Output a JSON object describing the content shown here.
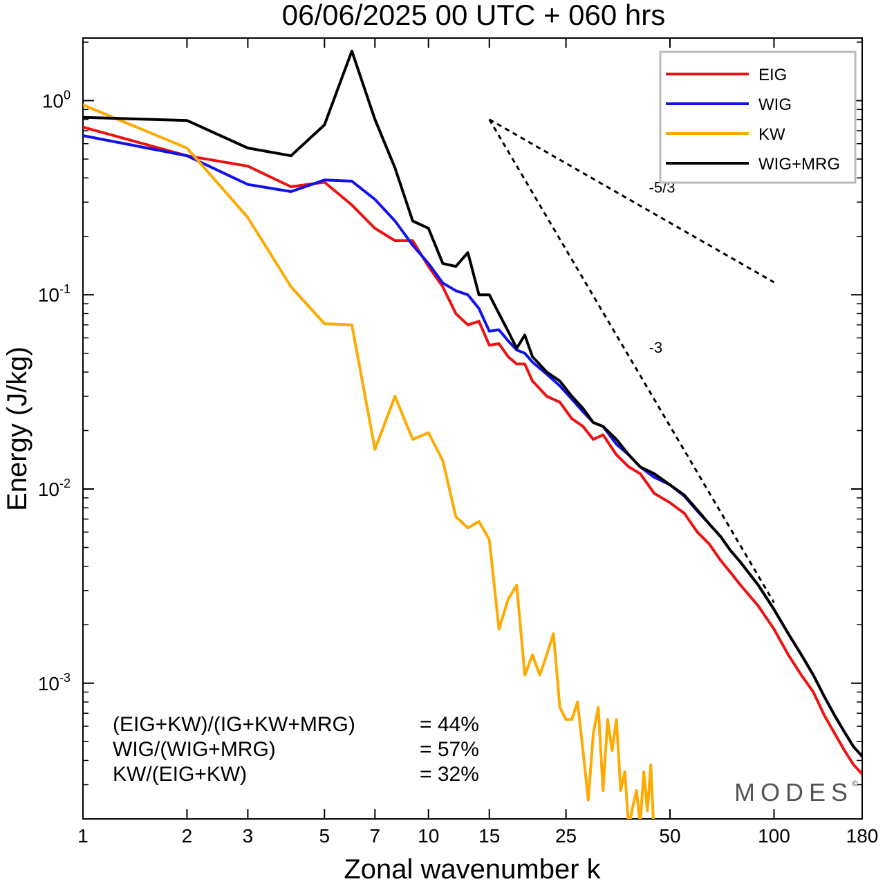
{
  "chart_data": {
    "type": "line",
    "title": "06/06/2025  00 UTC  + 060 hrs",
    "xlabel": "Zonal wavenumber k",
    "ylabel": "Energy (J/kg)",
    "x_scale": "log",
    "y_scale": "log",
    "xlim": [
      1,
      180
    ],
    "ylim": [
      0.0002,
      2.1
    ],
    "x_ticks": [
      1,
      2,
      3,
      5,
      7,
      10,
      15,
      25,
      50,
      100,
      180
    ],
    "x_tick_labels": [
      "1",
      "2",
      "3",
      "5",
      "7",
      "10",
      "15",
      "25",
      "50",
      "100",
      "180"
    ],
    "y_ticks": [
      {
        "value": 1,
        "base": "10",
        "exp": "0"
      },
      {
        "value": 0.1,
        "base": "10",
        "exp": "-1"
      },
      {
        "value": 0.01,
        "base": "10",
        "exp": "-2"
      },
      {
        "value": 0.001,
        "base": "10",
        "exp": "-3"
      }
    ],
    "grid": false,
    "legend_position": "top-right",
    "series": [
      {
        "name": "EIG",
        "color": "#ee1111",
        "points": [
          [
            1,
            0.73
          ],
          [
            2,
            0.52
          ],
          [
            3,
            0.46
          ],
          [
            4,
            0.36
          ],
          [
            5,
            0.38
          ],
          [
            6,
            0.29
          ],
          [
            7,
            0.22
          ],
          [
            8,
            0.19
          ],
          [
            9,
            0.19
          ],
          [
            10,
            0.14
          ],
          [
            11,
            0.11
          ],
          [
            12,
            0.08
          ],
          [
            13,
            0.07
          ],
          [
            14,
            0.073
          ],
          [
            15,
            0.055
          ],
          [
            16,
            0.056
          ],
          [
            17,
            0.048
          ],
          [
            18,
            0.044
          ],
          [
            19,
            0.044
          ],
          [
            20,
            0.036
          ],
          [
            22,
            0.03
          ],
          [
            24,
            0.028
          ],
          [
            26,
            0.023
          ],
          [
            28,
            0.021
          ],
          [
            30,
            0.018
          ],
          [
            32,
            0.019
          ],
          [
            35,
            0.015
          ],
          [
            38,
            0.013
          ],
          [
            41,
            0.012
          ],
          [
            45,
            0.0095
          ],
          [
            50,
            0.0085
          ],
          [
            55,
            0.0075
          ],
          [
            60,
            0.006
          ],
          [
            65,
            0.0052
          ],
          [
            70,
            0.0043
          ],
          [
            75,
            0.0037
          ],
          [
            80,
            0.0032
          ],
          [
            90,
            0.0025
          ],
          [
            100,
            0.0019
          ],
          [
            110,
            0.0014
          ],
          [
            120,
            0.0011
          ],
          [
            130,
            0.0009
          ],
          [
            140,
            0.00068
          ],
          [
            150,
            0.00055
          ],
          [
            160,
            0.00045
          ],
          [
            170,
            0.00038
          ],
          [
            180,
            0.00034
          ]
        ]
      },
      {
        "name": "WIG",
        "color": "#1111ee",
        "points": [
          [
            1,
            0.66
          ],
          [
            2,
            0.52
          ],
          [
            3,
            0.37
          ],
          [
            4,
            0.34
          ],
          [
            5,
            0.39
          ],
          [
            6,
            0.385
          ],
          [
            7,
            0.31
          ],
          [
            8,
            0.24
          ],
          [
            9,
            0.18
          ],
          [
            10,
            0.145
          ],
          [
            11,
            0.115
          ],
          [
            12,
            0.105
          ],
          [
            13,
            0.1
          ],
          [
            14,
            0.085
          ],
          [
            15,
            0.065
          ],
          [
            16,
            0.066
          ],
          [
            17,
            0.058
          ],
          [
            18,
            0.052
          ],
          [
            19,
            0.05
          ],
          [
            20,
            0.045
          ],
          [
            22,
            0.039
          ],
          [
            24,
            0.034
          ],
          [
            26,
            0.029
          ],
          [
            28,
            0.025
          ],
          [
            30,
            0.022
          ],
          [
            32,
            0.021
          ],
          [
            35,
            0.017
          ],
          [
            38,
            0.015
          ],
          [
            41,
            0.013
          ],
          [
            45,
            0.0115
          ],
          [
            50,
            0.0105
          ],
          [
            55,
            0.0092
          ],
          [
            60,
            0.0077
          ],
          [
            65,
            0.0066
          ],
          [
            70,
            0.0057
          ],
          [
            75,
            0.0048
          ],
          [
            80,
            0.0042
          ],
          [
            90,
            0.0032
          ],
          [
            100,
            0.0024
          ],
          [
            110,
            0.0018
          ],
          [
            120,
            0.0014
          ],
          [
            130,
            0.0011
          ],
          [
            140,
            0.00085
          ],
          [
            150,
            0.00068
          ],
          [
            160,
            0.00056
          ],
          [
            170,
            0.00047
          ],
          [
            180,
            0.00042
          ]
        ]
      },
      {
        "name": "KW",
        "color": "#ffaa00",
        "points": [
          [
            1,
            0.95
          ],
          [
            2,
            0.57
          ],
          [
            3,
            0.25
          ],
          [
            4,
            0.11
          ],
          [
            5,
            0.071
          ],
          [
            6,
            0.07
          ],
          [
            7,
            0.016
          ],
          [
            8,
            0.03
          ],
          [
            9,
            0.018
          ],
          [
            10,
            0.0195
          ],
          [
            11,
            0.014
          ],
          [
            12,
            0.0072
          ],
          [
            13,
            0.0063
          ],
          [
            14,
            0.0068
          ],
          [
            15,
            0.0055
          ],
          [
            16,
            0.0019
          ],
          [
            17,
            0.0027
          ],
          [
            18,
            0.0032
          ],
          [
            19,
            0.0011
          ],
          [
            20,
            0.0014
          ],
          [
            21,
            0.0011
          ],
          [
            22,
            0.0014
          ],
          [
            23,
            0.0018
          ],
          [
            24,
            0.00075
          ],
          [
            25,
            0.00065
          ],
          [
            26,
            0.00065
          ],
          [
            27,
            0.0008
          ],
          [
            28,
            0.00045
          ],
          [
            29,
            0.00025
          ],
          [
            30,
            0.00055
          ],
          [
            31,
            0.00075
          ],
          [
            32,
            0.00028
          ],
          [
            33,
            0.00065
          ],
          [
            34,
            0.00045
          ],
          [
            35,
            0.00065
          ],
          [
            36,
            0.00028
          ],
          [
            37,
            0.00035
          ],
          [
            38,
            0.00018
          ],
          [
            39,
            0.00023
          ],
          [
            40,
            0.00028
          ],
          [
            41,
            0.00019
          ],
          [
            42,
            0.00035
          ],
          [
            43,
            0.00022
          ],
          [
            44,
            0.00038
          ],
          [
            45,
            0.00016
          ]
        ]
      },
      {
        "name": "WIG+MRG",
        "color": "#000000",
        "points": [
          [
            1,
            0.82
          ],
          [
            2,
            0.79
          ],
          [
            3,
            0.57
          ],
          [
            4,
            0.52
          ],
          [
            5,
            0.75
          ],
          [
            6,
            1.8
          ],
          [
            7,
            0.8
          ],
          [
            8,
            0.45
          ],
          [
            9,
            0.24
          ],
          [
            10,
            0.22
          ],
          [
            11,
            0.145
          ],
          [
            12,
            0.14
          ],
          [
            13,
            0.165
          ],
          [
            14,
            0.1
          ],
          [
            15,
            0.1
          ],
          [
            16,
            0.08
          ],
          [
            17,
            0.065
          ],
          [
            18,
            0.053
          ],
          [
            19,
            0.062
          ],
          [
            20,
            0.048
          ],
          [
            22,
            0.04
          ],
          [
            24,
            0.036
          ],
          [
            26,
            0.03
          ],
          [
            28,
            0.026
          ],
          [
            30,
            0.022
          ],
          [
            32,
            0.021
          ],
          [
            35,
            0.018
          ],
          [
            38,
            0.015
          ],
          [
            41,
            0.013
          ],
          [
            45,
            0.012
          ],
          [
            50,
            0.0105
          ],
          [
            55,
            0.0093
          ],
          [
            60,
            0.0078
          ],
          [
            65,
            0.0066
          ],
          [
            70,
            0.0057
          ],
          [
            75,
            0.0048
          ],
          [
            80,
            0.0042
          ],
          [
            90,
            0.0032
          ],
          [
            100,
            0.0024
          ],
          [
            110,
            0.0018
          ],
          [
            120,
            0.0014
          ],
          [
            130,
            0.0011
          ],
          [
            140,
            0.00085
          ],
          [
            150,
            0.00068
          ],
          [
            160,
            0.00056
          ],
          [
            170,
            0.00047
          ],
          [
            180,
            0.00042
          ]
        ]
      }
    ],
    "reference_lines": [
      {
        "label": "-5/3",
        "from": [
          15,
          0.8
        ],
        "to": [
          100,
          0.116
        ]
      },
      {
        "label": "-3",
        "from": [
          15,
          0.8
        ],
        "to": [
          100,
          0.0026
        ]
      }
    ],
    "ratios": [
      {
        "label": "(EIG+KW)/(IG+KW+MRG)",
        "value": "= 44%"
      },
      {
        "label": "WIG/(WIG+MRG)",
        "value": "= 57%"
      },
      {
        "label": "KW/(EIG+KW)",
        "value": "= 32%"
      }
    ],
    "watermark": "MODES",
    "watermark_mark": "©"
  }
}
